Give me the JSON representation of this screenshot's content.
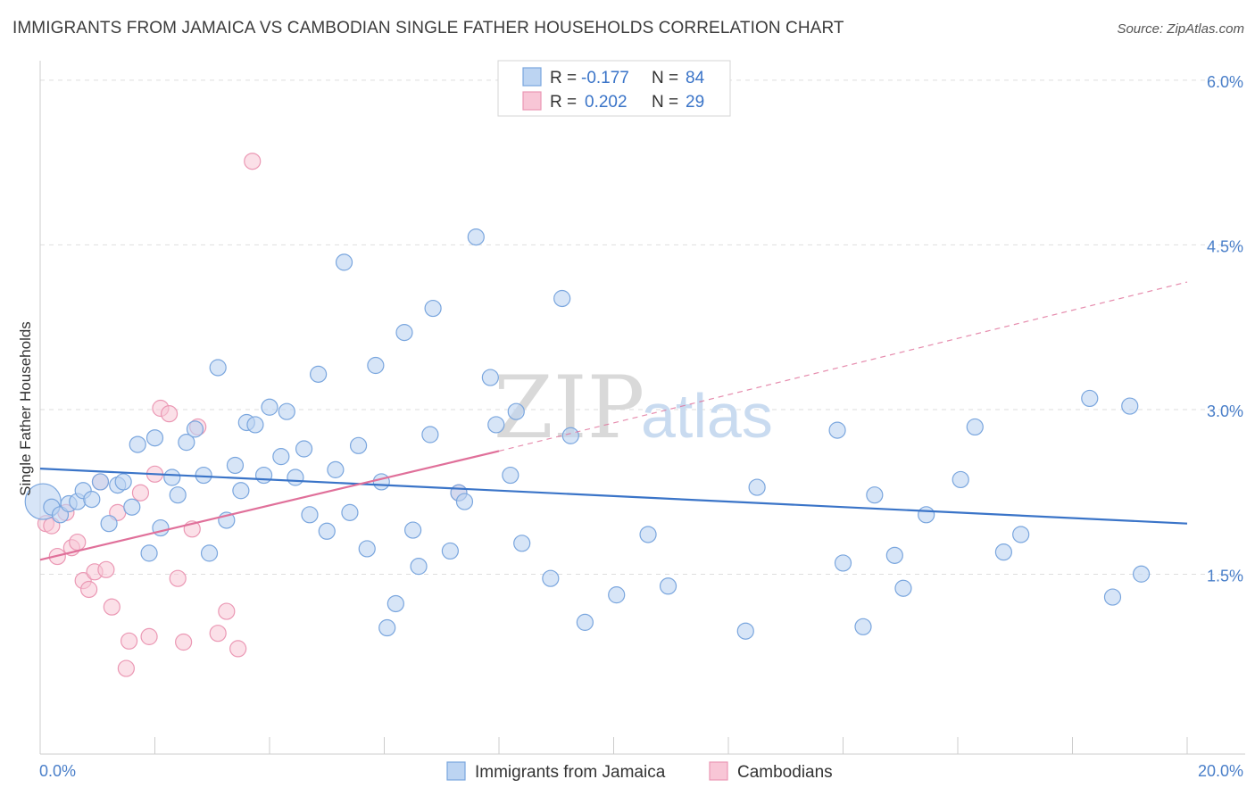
{
  "title": "IMMIGRANTS FROM JAMAICA VS CAMBODIAN SINGLE FATHER HOUSEHOLDS CORRELATION CHART",
  "source": "Source: ZipAtlas.com",
  "watermark": {
    "zip": "ZIP",
    "atlas": "atlas"
  },
  "colors": {
    "blue": "#3a74c8",
    "blue_fill": "#bcd4f2",
    "blue_stroke": "#7aa6de",
    "pink": "#e0709a",
    "pink_fill": "#f8c6d6",
    "pink_stroke": "#eb98b4",
    "grid": "#dedede",
    "axis_label": "#4a7fc9"
  },
  "legend": {
    "r_label": "R =",
    "n_label": "N =",
    "rows": [
      {
        "series": "Immigrants from Jamaica",
        "r": "-0.177",
        "n": "84",
        "color": "blue"
      },
      {
        "series": "Cambodians",
        "r": "0.202",
        "n": "29",
        "color": "pink"
      }
    ]
  },
  "bottom_legend": [
    "Immigrants from Jamaica",
    "Cambodians"
  ],
  "chart_data": {
    "type": "scatter",
    "title": "IMMIGRANTS FROM JAMAICA VS CAMBODIAN SINGLE FATHER HOUSEHOLDS CORRELATION CHART",
    "xlabel": "",
    "ylabel": "Single Father Households",
    "xlim": [
      0,
      20
    ],
    "ylim": [
      0,
      6.3
    ],
    "x_tick_labels": [
      {
        "value": 0,
        "label": "0.0%"
      },
      {
        "value": 20,
        "label": "20.0%"
      }
    ],
    "y_tick_labels": [
      {
        "value": 1.5,
        "label": "1.5%"
      },
      {
        "value": 3.0,
        "label": "3.0%"
      },
      {
        "value": 4.5,
        "label": "4.5%"
      },
      {
        "value": 6.0,
        "label": "6.0%"
      }
    ],
    "grid": true,
    "legend_position": "top-center",
    "series": [
      {
        "name": "Immigrants from Jamaica",
        "color": "blue",
        "trend": {
          "x": [
            0,
            20
          ],
          "y": [
            2.6,
            2.1
          ]
        },
        "points": [
          {
            "x": 0.05,
            "y": 2.3,
            "big": true
          },
          {
            "x": 0.2,
            "y": 2.25
          },
          {
            "x": 0.35,
            "y": 2.18
          },
          {
            "x": 0.5,
            "y": 2.28
          },
          {
            "x": 0.65,
            "y": 2.3
          },
          {
            "x": 0.75,
            "y": 2.4
          },
          {
            "x": 0.9,
            "y": 2.32
          },
          {
            "x": 1.05,
            "y": 2.48
          },
          {
            "x": 1.2,
            "y": 2.1
          },
          {
            "x": 1.35,
            "y": 2.45
          },
          {
            "x": 1.45,
            "y": 2.48
          },
          {
            "x": 1.6,
            "y": 2.25
          },
          {
            "x": 1.7,
            "y": 2.82
          },
          {
            "x": 1.9,
            "y": 1.83
          },
          {
            "x": 2.0,
            "y": 2.88
          },
          {
            "x": 2.1,
            "y": 2.06
          },
          {
            "x": 2.3,
            "y": 2.52
          },
          {
            "x": 2.4,
            "y": 2.36
          },
          {
            "x": 2.55,
            "y": 2.84
          },
          {
            "x": 2.7,
            "y": 2.96
          },
          {
            "x": 2.85,
            "y": 2.54
          },
          {
            "x": 2.95,
            "y": 1.83
          },
          {
            "x": 3.1,
            "y": 3.52
          },
          {
            "x": 3.25,
            "y": 2.13
          },
          {
            "x": 3.4,
            "y": 2.63
          },
          {
            "x": 3.5,
            "y": 2.4
          },
          {
            "x": 3.6,
            "y": 3.02
          },
          {
            "x": 3.75,
            "y": 3.0
          },
          {
            "x": 3.9,
            "y": 2.54
          },
          {
            "x": 4.0,
            "y": 3.16
          },
          {
            "x": 4.2,
            "y": 2.71
          },
          {
            "x": 4.3,
            "y": 3.12
          },
          {
            "x": 4.45,
            "y": 2.52
          },
          {
            "x": 4.6,
            "y": 2.78
          },
          {
            "x": 4.7,
            "y": 2.18
          },
          {
            "x": 4.85,
            "y": 3.46
          },
          {
            "x": 5.0,
            "y": 2.03
          },
          {
            "x": 5.15,
            "y": 2.59
          },
          {
            "x": 5.3,
            "y": 4.48
          },
          {
            "x": 5.4,
            "y": 2.2
          },
          {
            "x": 5.55,
            "y": 2.81
          },
          {
            "x": 5.7,
            "y": 1.87
          },
          {
            "x": 5.85,
            "y": 3.54
          },
          {
            "x": 5.95,
            "y": 2.48
          },
          {
            "x": 6.05,
            "y": 1.15
          },
          {
            "x": 6.2,
            "y": 1.37
          },
          {
            "x": 6.35,
            "y": 3.84
          },
          {
            "x": 6.5,
            "y": 2.04
          },
          {
            "x": 6.6,
            "y": 1.71
          },
          {
            "x": 6.8,
            "y": 2.91
          },
          {
            "x": 6.85,
            "y": 4.06
          },
          {
            "x": 7.15,
            "y": 1.85
          },
          {
            "x": 7.3,
            "y": 2.38
          },
          {
            "x": 7.4,
            "y": 2.3
          },
          {
            "x": 7.6,
            "y": 4.71
          },
          {
            "x": 7.85,
            "y": 3.43
          },
          {
            "x": 7.95,
            "y": 3.0
          },
          {
            "x": 8.2,
            "y": 2.54
          },
          {
            "x": 8.3,
            "y": 3.12
          },
          {
            "x": 8.4,
            "y": 1.92
          },
          {
            "x": 8.9,
            "y": 1.6
          },
          {
            "x": 9.1,
            "y": 4.15
          },
          {
            "x": 9.25,
            "y": 2.9
          },
          {
            "x": 9.5,
            "y": 1.2
          },
          {
            "x": 10.05,
            "y": 1.45
          },
          {
            "x": 10.6,
            "y": 2.0
          },
          {
            "x": 10.95,
            "y": 1.53
          },
          {
            "x": 12.3,
            "y": 1.12
          },
          {
            "x": 12.5,
            "y": 2.43
          },
          {
            "x": 13.9,
            "y": 2.95
          },
          {
            "x": 14.0,
            "y": 1.74
          },
          {
            "x": 14.35,
            "y": 1.16
          },
          {
            "x": 14.55,
            "y": 2.36
          },
          {
            "x": 14.9,
            "y": 1.81
          },
          {
            "x": 15.05,
            "y": 1.51
          },
          {
            "x": 15.45,
            "y": 2.18
          },
          {
            "x": 16.05,
            "y": 2.5
          },
          {
            "x": 16.3,
            "y": 2.98
          },
          {
            "x": 16.8,
            "y": 1.84
          },
          {
            "x": 17.1,
            "y": 2.0
          },
          {
            "x": 18.3,
            "y": 3.24
          },
          {
            "x": 18.7,
            "y": 1.43
          },
          {
            "x": 19.0,
            "y": 3.17
          },
          {
            "x": 19.2,
            "y": 1.64
          }
        ]
      },
      {
        "name": "Cambodians",
        "color": "pink",
        "trend": {
          "x": [
            0,
            8.0
          ],
          "y": [
            1.77,
            2.76
          ]
        },
        "trend_dashed": {
          "x": [
            8.0,
            20
          ],
          "y": [
            2.76,
            4.3
          ]
        },
        "points": [
          {
            "x": 0.1,
            "y": 2.1
          },
          {
            "x": 0.2,
            "y": 2.08
          },
          {
            "x": 0.3,
            "y": 1.8
          },
          {
            "x": 0.45,
            "y": 2.2
          },
          {
            "x": 0.55,
            "y": 1.88
          },
          {
            "x": 0.65,
            "y": 1.93
          },
          {
            "x": 0.75,
            "y": 1.58
          },
          {
            "x": 0.85,
            "y": 1.5
          },
          {
            "x": 0.95,
            "y": 1.66
          },
          {
            "x": 1.05,
            "y": 2.48
          },
          {
            "x": 1.15,
            "y": 1.68
          },
          {
            "x": 1.25,
            "y": 1.34
          },
          {
            "x": 1.35,
            "y": 2.2
          },
          {
            "x": 1.5,
            "y": 0.78
          },
          {
            "x": 1.55,
            "y": 1.03
          },
          {
            "x": 1.75,
            "y": 2.38
          },
          {
            "x": 1.9,
            "y": 1.07
          },
          {
            "x": 2.0,
            "y": 2.55
          },
          {
            "x": 2.1,
            "y": 3.15
          },
          {
            "x": 2.25,
            "y": 3.1
          },
          {
            "x": 2.4,
            "y": 1.6
          },
          {
            "x": 2.5,
            "y": 1.02
          },
          {
            "x": 2.65,
            "y": 2.05
          },
          {
            "x": 2.75,
            "y": 2.98
          },
          {
            "x": 3.1,
            "y": 1.1
          },
          {
            "x": 3.25,
            "y": 1.3
          },
          {
            "x": 3.45,
            "y": 0.96
          },
          {
            "x": 3.7,
            "y": 5.4
          },
          {
            "x": 7.3,
            "y": 2.38
          }
        ]
      }
    ]
  }
}
